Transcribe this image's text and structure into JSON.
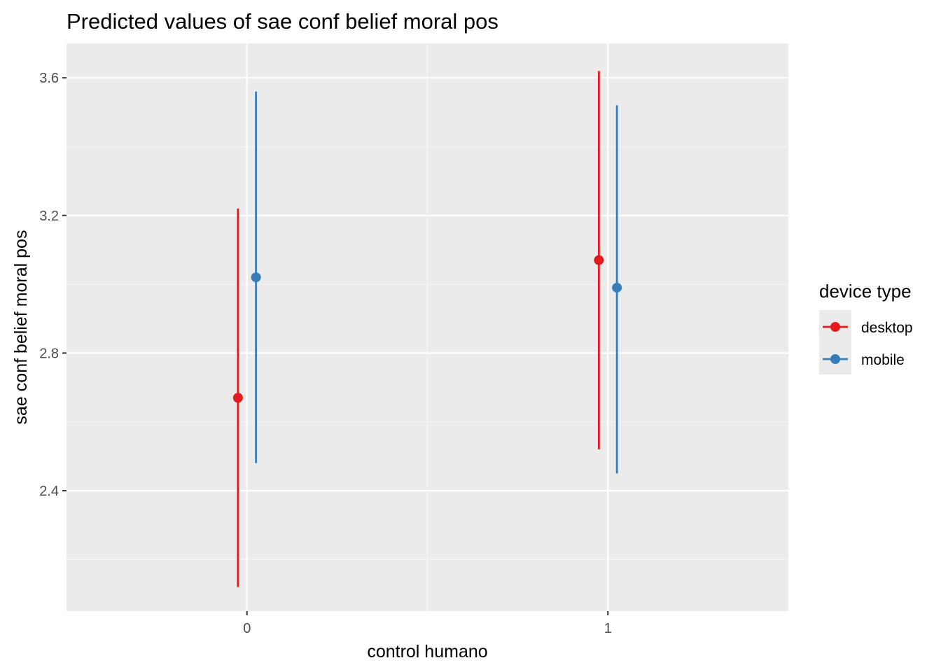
{
  "chart_data": {
    "type": "scatter",
    "title": "Predicted values of sae conf belief moral pos",
    "xlabel": "control humano",
    "ylabel": "sae conf belief moral pos",
    "x_categories": [
      "0",
      "1"
    ],
    "xlim": [
      -0.5,
      1.5
    ],
    "ylim": [
      2.05,
      3.7
    ],
    "y_ticks": [
      2.4,
      2.8,
      3.2,
      3.6
    ],
    "y_tick_labels": [
      "2.4",
      "2.8",
      "3.2",
      "3.6"
    ],
    "grid": true,
    "legend": {
      "title": "device type",
      "placement": "right"
    },
    "series": [
      {
        "name": "desktop",
        "color": "#e41a1c",
        "points": [
          {
            "x": "0",
            "y": 2.67,
            "ymin": 2.12,
            "ymax": 3.22
          },
          {
            "x": "1",
            "y": 3.07,
            "ymin": 2.52,
            "ymax": 3.62
          }
        ]
      },
      {
        "name": "mobile",
        "color": "#377eb8",
        "points": [
          {
            "x": "0",
            "y": 3.02,
            "ymin": 2.48,
            "ymax": 3.56
          },
          {
            "x": "1",
            "y": 2.99,
            "ymin": 2.45,
            "ymax": 3.52
          }
        ]
      }
    ]
  }
}
